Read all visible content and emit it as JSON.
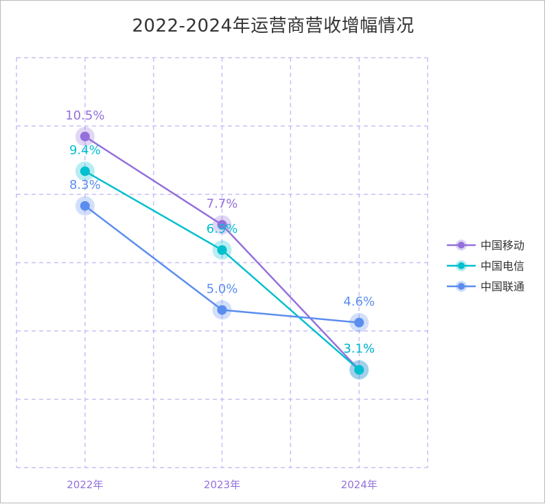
{
  "chart_data": {
    "type": "line",
    "title": "2022-2024年运营商营收增幅情况",
    "categories": [
      "2022年",
      "2023年",
      "2024年"
    ],
    "series": [
      {
        "name": "中国移动",
        "values": [
          10.5,
          7.7,
          3.1
        ],
        "labels": [
          "10.5%",
          "7.7%",
          "3.1%"
        ],
        "color": "#9370DB"
      },
      {
        "name": "中国电信",
        "values": [
          9.4,
          6.9,
          3.1
        ],
        "labels": [
          "9.4%",
          "6.9%",
          "3.1%"
        ],
        "color": "#00BFCF"
      },
      {
        "name": "中国联通",
        "values": [
          8.3,
          5.0,
          4.6
        ],
        "labels": [
          "8.3%",
          "5.0%",
          "4.6%"
        ],
        "color": "#5B8DEF"
      }
    ],
    "ylim": [
      0,
      13
    ],
    "grid": true,
    "grid_color": "#C9BEF5",
    "tick_color": "#9370DB",
    "legend_position": "right"
  }
}
